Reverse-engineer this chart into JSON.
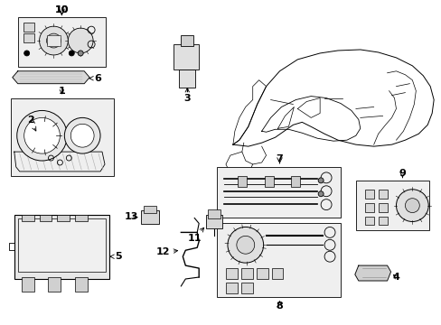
{
  "bg_color": "#ffffff",
  "line_color": "#000000",
  "fig_width": 4.89,
  "fig_height": 3.6,
  "dpi": 100,
  "label_fontsize": 8,
  "lw": 0.6
}
